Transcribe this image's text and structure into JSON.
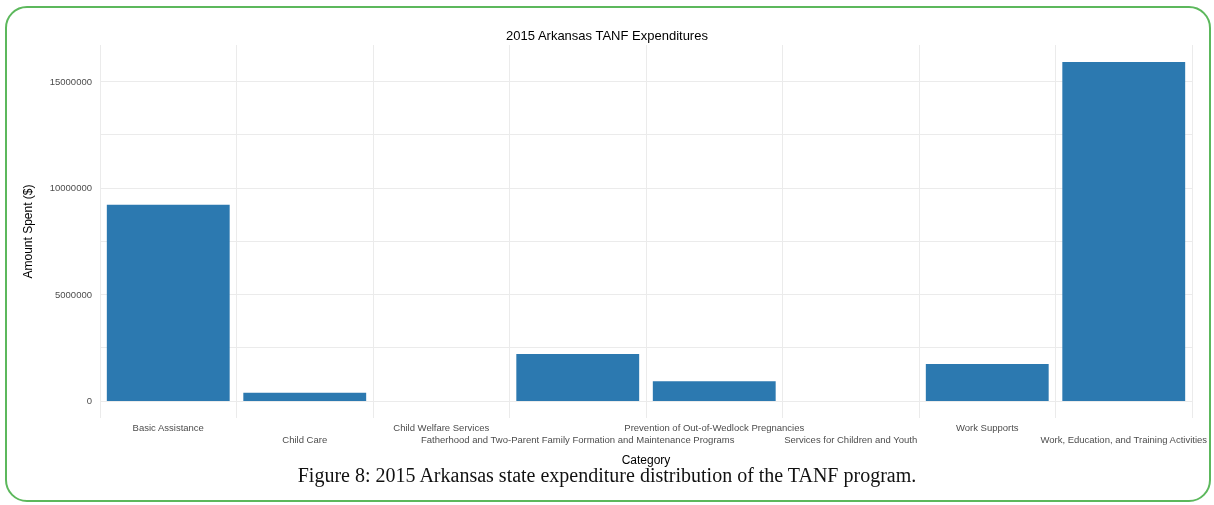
{
  "chart_data": {
    "type": "bar",
    "title": "2015 Arkansas TANF Expenditures",
    "xlabel": "Category",
    "ylabel": "Amount Spent ($)",
    "categories": [
      "Basic Assistance",
      "Child Care",
      "Child Welfare Services",
      "Fatherhood and Two-Parent Family Formation and Maintenance Programs",
      "Prevention of Out-of-Wedlock Pregnancies",
      "Services for Children and Youth",
      "Work Supports",
      "Work, Education, and Training Activities"
    ],
    "values": [
      9200000,
      390000,
      0,
      2200000,
      930000,
      0,
      1730000,
      15900000
    ],
    "color": "#2c79b0",
    "ylim": [
      -800000,
      16700000
    ],
    "yticks": [
      0,
      {
        "value": 2500000,
        "label": null
      },
      5000000,
      {
        "value": 7500000,
        "label": null
      },
      10000000,
      {
        "value": 12500000,
        "label": null
      },
      15000000
    ],
    "grid": true,
    "annotations": [
      "Figure 8: 2015 Arkansas state expenditure distribution of the TANF program."
    ]
  }
}
